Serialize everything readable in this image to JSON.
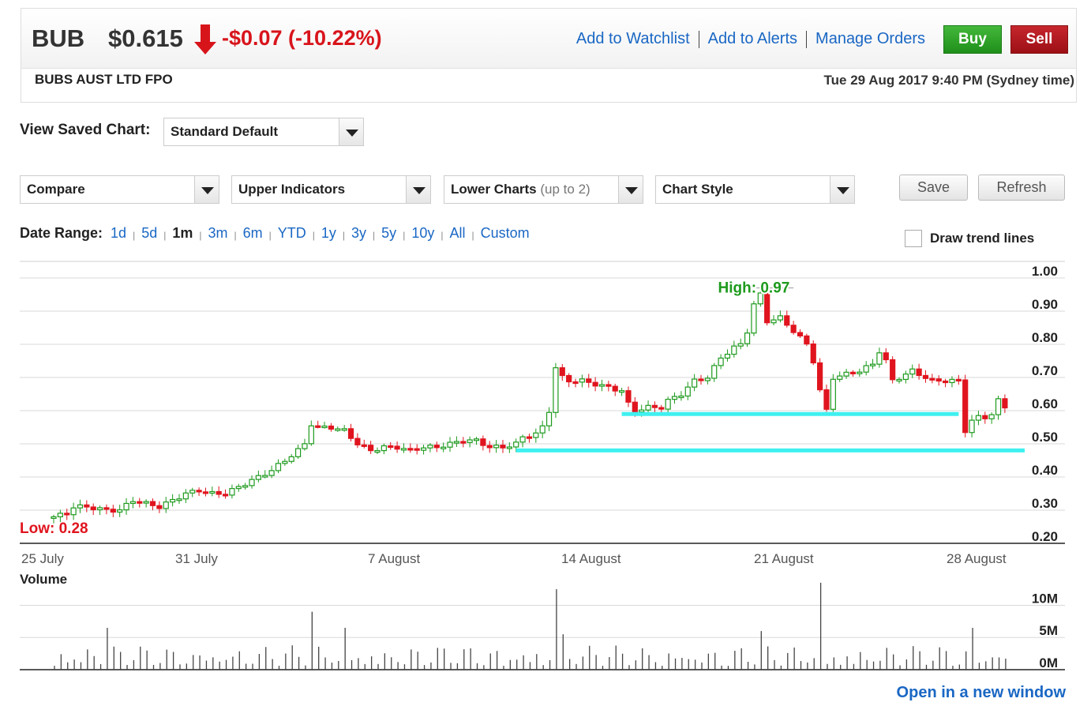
{
  "quote": {
    "ticker": "BUB",
    "price": "$0.615",
    "change": "-$0.07 (-10.22%)",
    "direction_icon": "arrow-down-icon",
    "company": "BUBS AUST LTD FPO",
    "datetime": "Tue 29 Aug 2017 9:40 PM (Sydney time)"
  },
  "links": {
    "watchlist": "Add to Watchlist",
    "alerts": "Add to Alerts",
    "orders": "Manage Orders",
    "open_window": "Open in a new window"
  },
  "buttons": {
    "buy": "Buy",
    "sell": "Sell",
    "save": "Save",
    "refresh": "Refresh"
  },
  "saved_chart": {
    "label": "View Saved Chart:",
    "value": "Standard Default"
  },
  "toolbar": {
    "compare": "Compare",
    "upper": "Upper Indicators",
    "lower": "Lower Charts",
    "lower_note": "(up to 2)",
    "style": "Chart Style"
  },
  "date_range": {
    "label": "Date Range:",
    "options": [
      "1d",
      "5d",
      "1m",
      "3m",
      "6m",
      "YTD",
      "1y",
      "3y",
      "5y",
      "10y",
      "All",
      "Custom"
    ],
    "selected": "1m"
  },
  "trend": {
    "label": "Draw trend lines",
    "checked": false
  },
  "colors": {
    "up": "#1d9a1d",
    "down": "#e0141e",
    "trend_line": "#3ff0f0",
    "link": "#1a67c4"
  },
  "chart_data": {
    "type": "candlestick",
    "x_labels": [
      "25 July",
      "31 July",
      "7 August",
      "14 August",
      "21 August",
      "28 August"
    ],
    "y_ticks": [
      "0.20",
      "0.30",
      "0.40",
      "0.50",
      "0.60",
      "0.70",
      "0.80",
      "0.90",
      "1.00"
    ],
    "ylim": [
      0.2,
      1.05
    ],
    "high_label": "High: 0.97",
    "low_label": "Low: 0.28",
    "high": 0.97,
    "low": 0.28,
    "close_path": [
      [
        0,
        0.28
      ],
      [
        2,
        0.29
      ],
      [
        3,
        0.31
      ],
      [
        5,
        0.31
      ],
      [
        8,
        0.3
      ],
      [
        10,
        0.3
      ],
      [
        12,
        0.33
      ],
      [
        14,
        0.32
      ],
      [
        16,
        0.31
      ],
      [
        18,
        0.33
      ],
      [
        20,
        0.35
      ],
      [
        22,
        0.36
      ],
      [
        24,
        0.35
      ],
      [
        26,
        0.35
      ],
      [
        28,
        0.37
      ],
      [
        30,
        0.39
      ],
      [
        31,
        0.4
      ],
      [
        33,
        0.42
      ],
      [
        35,
        0.45
      ],
      [
        37,
        0.48
      ],
      [
        38,
        0.5
      ],
      [
        39,
        0.56
      ],
      [
        40,
        0.55
      ],
      [
        42,
        0.55
      ],
      [
        44,
        0.54
      ],
      [
        45,
        0.52
      ],
      [
        46,
        0.5
      ],
      [
        48,
        0.48
      ],
      [
        50,
        0.49
      ],
      [
        52,
        0.49
      ],
      [
        54,
        0.48
      ],
      [
        56,
        0.49
      ],
      [
        58,
        0.49
      ],
      [
        60,
        0.5
      ],
      [
        62,
        0.51
      ],
      [
        64,
        0.51
      ],
      [
        66,
        0.49
      ],
      [
        68,
        0.49
      ],
      [
        70,
        0.5
      ],
      [
        71,
        0.52
      ],
      [
        73,
        0.53
      ],
      [
        74,
        0.55
      ],
      [
        75,
        0.6
      ],
      [
        76,
        0.73
      ],
      [
        77,
        0.7
      ],
      [
        78,
        0.69
      ],
      [
        80,
        0.69
      ],
      [
        82,
        0.68
      ],
      [
        84,
        0.67
      ],
      [
        86,
        0.66
      ],
      [
        87,
        0.62
      ],
      [
        88,
        0.6
      ],
      [
        90,
        0.61
      ],
      [
        92,
        0.61
      ],
      [
        93,
        0.63
      ],
      [
        95,
        0.65
      ],
      [
        97,
        0.69
      ],
      [
        99,
        0.7
      ],
      [
        101,
        0.76
      ],
      [
        103,
        0.79
      ],
      [
        104,
        0.8
      ],
      [
        105,
        0.84
      ],
      [
        106,
        0.92
      ],
      [
        107,
        0.95
      ],
      [
        108,
        0.87
      ],
      [
        110,
        0.88
      ],
      [
        112,
        0.84
      ],
      [
        114,
        0.8
      ],
      [
        115,
        0.75
      ],
      [
        116,
        0.66
      ],
      [
        117,
        0.6
      ],
      [
        118,
        0.7
      ],
      [
        120,
        0.71
      ],
      [
        122,
        0.72
      ],
      [
        124,
        0.74
      ],
      [
        125,
        0.78
      ],
      [
        126,
        0.75
      ],
      [
        127,
        0.69
      ],
      [
        128,
        0.7
      ],
      [
        130,
        0.72
      ],
      [
        131,
        0.71
      ],
      [
        133,
        0.69
      ],
      [
        135,
        0.69
      ],
      [
        137,
        0.69
      ],
      [
        138,
        0.54
      ],
      [
        139,
        0.57
      ],
      [
        140,
        0.58
      ],
      [
        141,
        0.58
      ],
      [
        142,
        0.59
      ],
      [
        143,
        0.63
      ],
      [
        144,
        0.61
      ]
    ],
    "support_lines": [
      {
        "from_index": 86,
        "to_index": 137,
        "y": 0.59
      },
      {
        "from_index": 70,
        "to_index": 147,
        "y": 0.48
      }
    ],
    "volume": {
      "label": "Volume",
      "y_ticks": [
        "0M",
        "5M",
        "10M"
      ],
      "ylim": [
        0,
        13
      ]
    }
  }
}
